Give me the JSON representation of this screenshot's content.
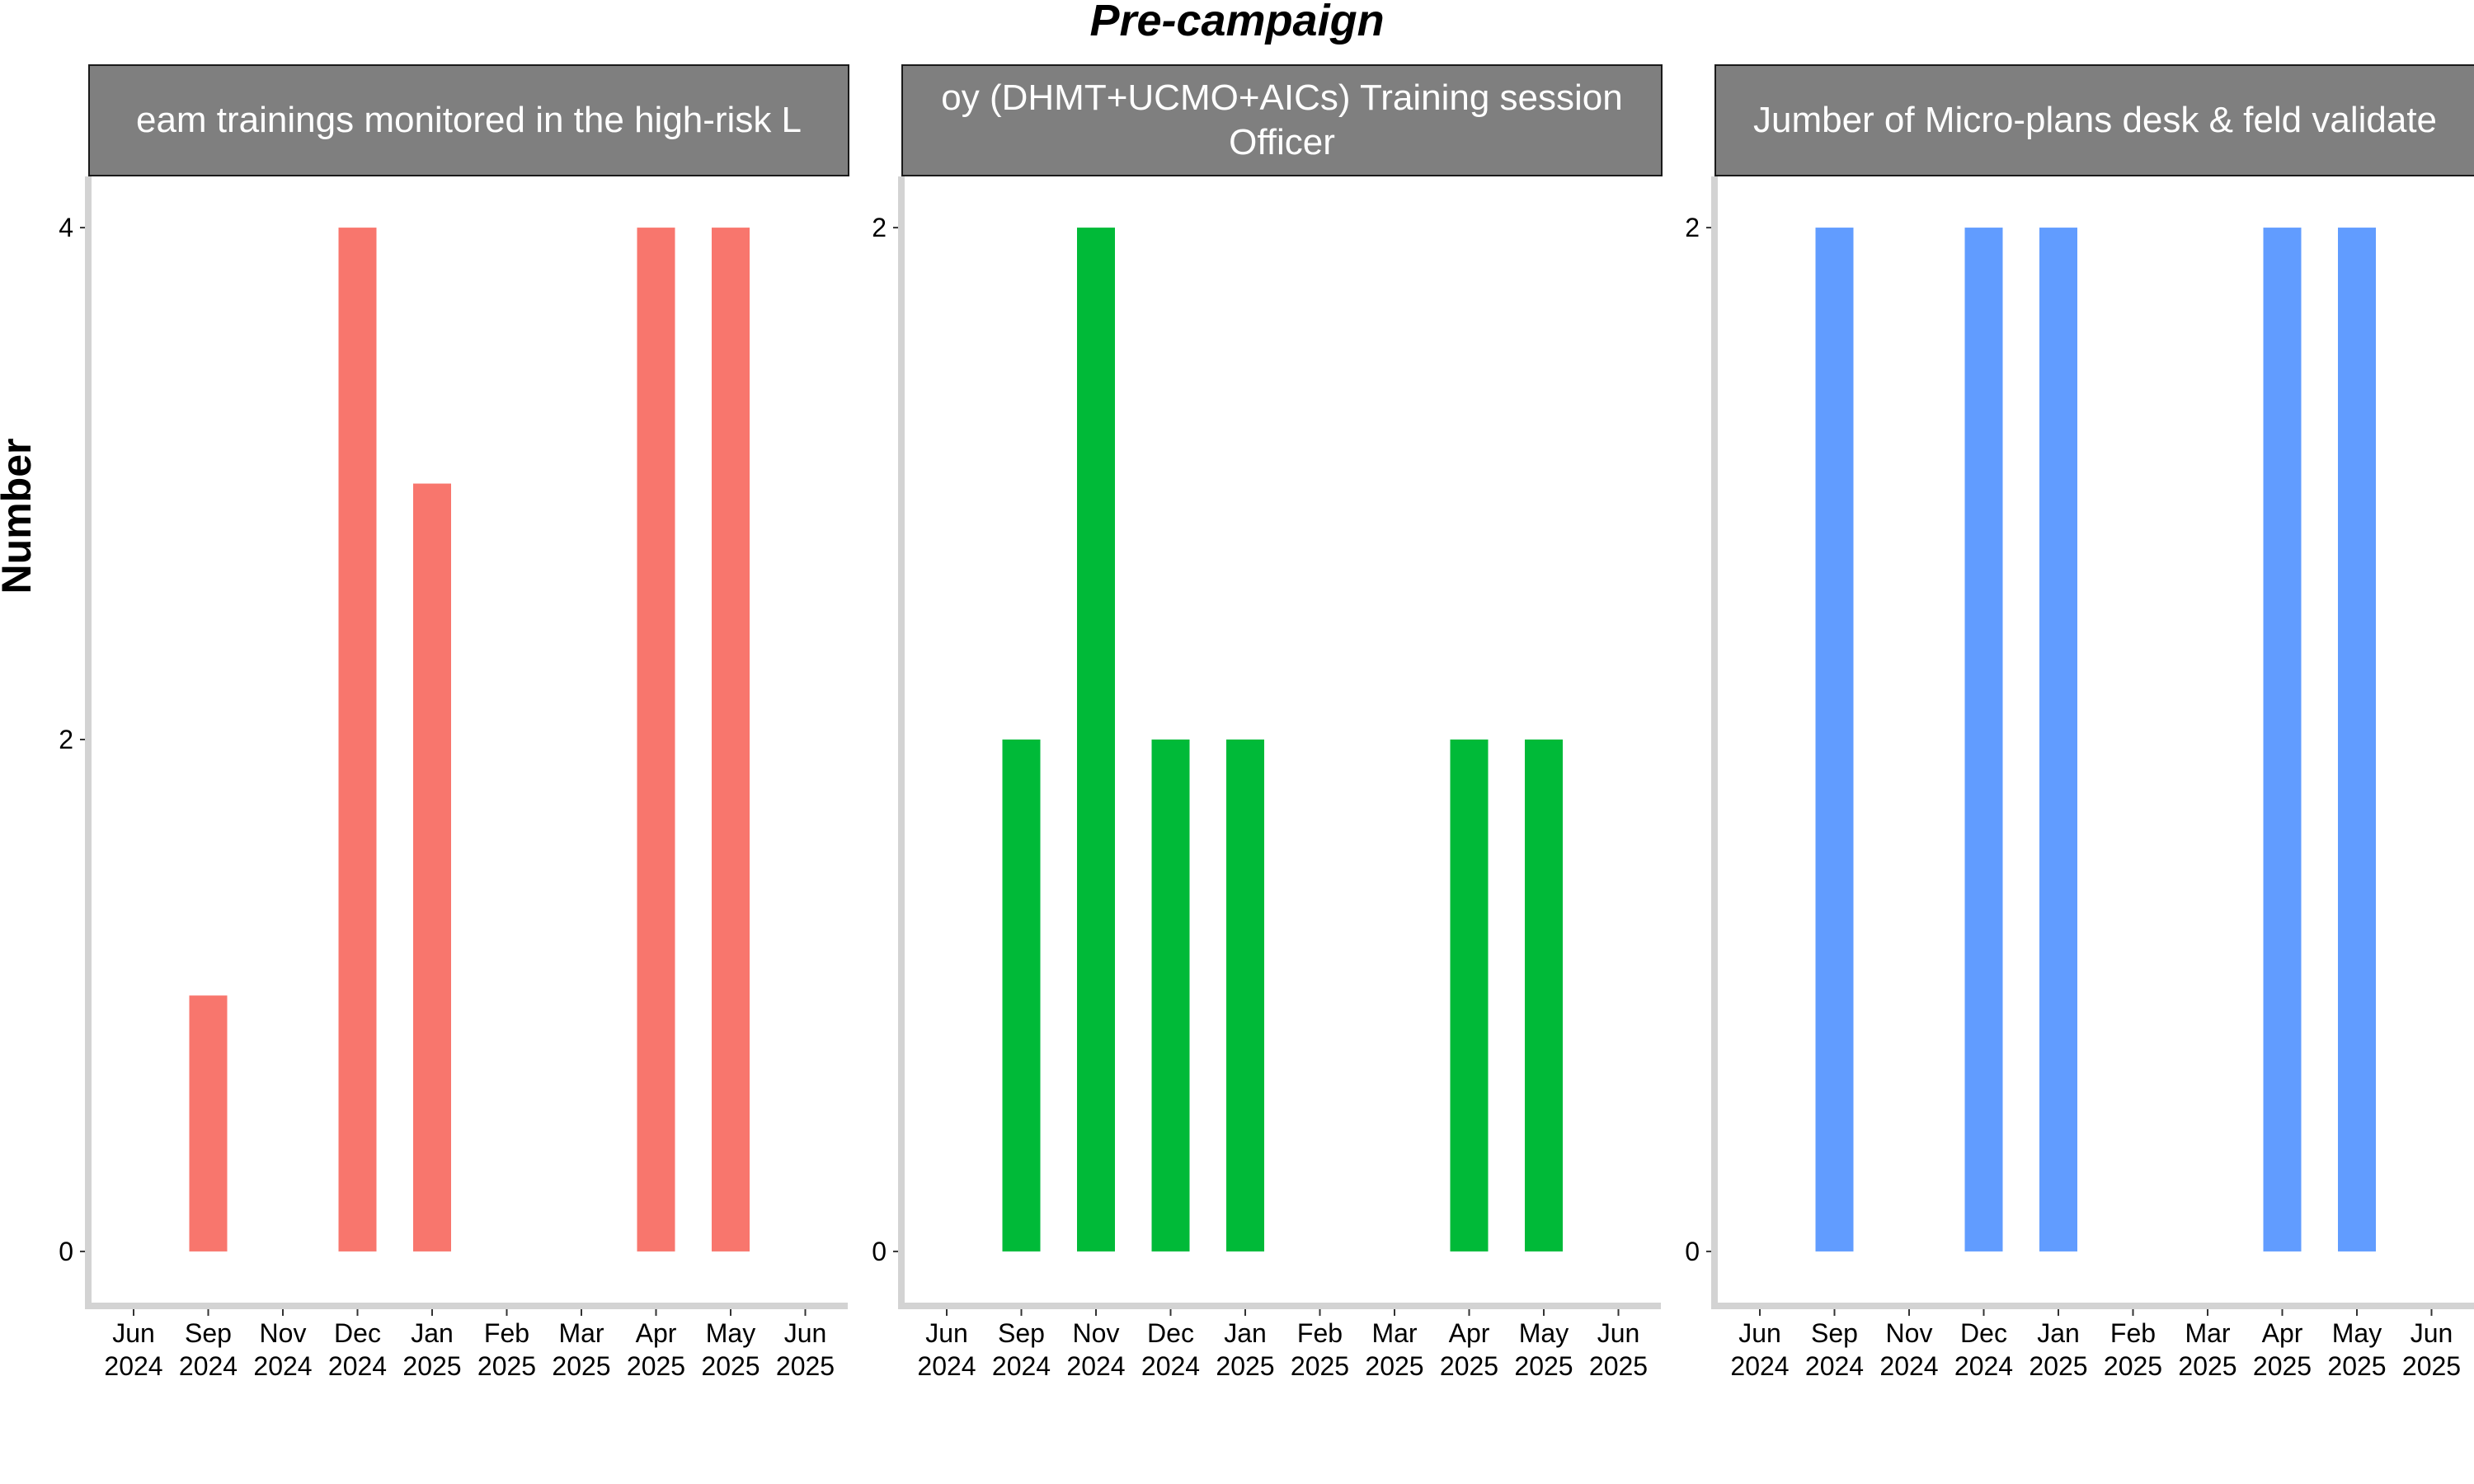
{
  "title": "Pre-campaign",
  "ylabel": "Number",
  "chart_data": [
    {
      "type": "bar",
      "strip_label": "eam trainings monitored in the high-risk L",
      "color": "#F8766D",
      "x_ticks": [
        "Jun\n2024",
        "Sep\n2024",
        "Nov\n2024",
        "Dec\n2024",
        "Jan\n2025",
        "Feb\n2025",
        "Mar\n2025",
        "Apr\n2025",
        "May\n2025",
        "Jun\n2025"
      ],
      "categories": [
        "Sep 2024",
        "Dec 2024",
        "Jan 2025",
        "Apr 2025",
        "May 2025"
      ],
      "category_tick_index": [
        1,
        3,
        4,
        7,
        8
      ],
      "values": [
        1,
        4,
        3,
        4,
        4
      ],
      "y_ticks": [
        0,
        2,
        4
      ],
      "ylim": [
        -0.2,
        4.2
      ]
    },
    {
      "type": "bar",
      "strip_label": "oy (DHMT+UCMO+AICs) Training session\nOfficer",
      "color": "#00BA38",
      "x_ticks": [
        "Jun\n2024",
        "Sep\n2024",
        "Nov\n2024",
        "Dec\n2024",
        "Jan\n2025",
        "Feb\n2025",
        "Mar\n2025",
        "Apr\n2025",
        "May\n2025",
        "Jun\n2025"
      ],
      "categories": [
        "Sep 2024",
        "Nov 2024",
        "Dec 2024",
        "Jan 2025",
        "Apr 2025",
        "May 2025"
      ],
      "category_tick_index": [
        1,
        2,
        3,
        4,
        7,
        8
      ],
      "values": [
        1,
        2,
        1,
        1,
        1,
        1
      ],
      "y_ticks": [
        0,
        2
      ],
      "ylim": [
        -0.1,
        2.1
      ]
    },
    {
      "type": "bar",
      "strip_label": "Jumber of Micro-plans desk & feld validate",
      "color": "#619CFF",
      "x_ticks": [
        "Jun\n2024",
        "Sep\n2024",
        "Nov\n2024",
        "Dec\n2024",
        "Jan\n2025",
        "Feb\n2025",
        "Mar\n2025",
        "Apr\n2025",
        "May\n2025",
        "Jun\n2025"
      ],
      "categories": [
        "Sep 2024",
        "Dec 2024",
        "Jan 2025",
        "Apr 2025",
        "May 2025"
      ],
      "category_tick_index": [
        1,
        3,
        4,
        7,
        8
      ],
      "values": [
        2,
        2,
        2,
        2,
        2
      ],
      "y_ticks": [
        0,
        2
      ],
      "ylim": [
        -0.1,
        2.1
      ]
    }
  ]
}
